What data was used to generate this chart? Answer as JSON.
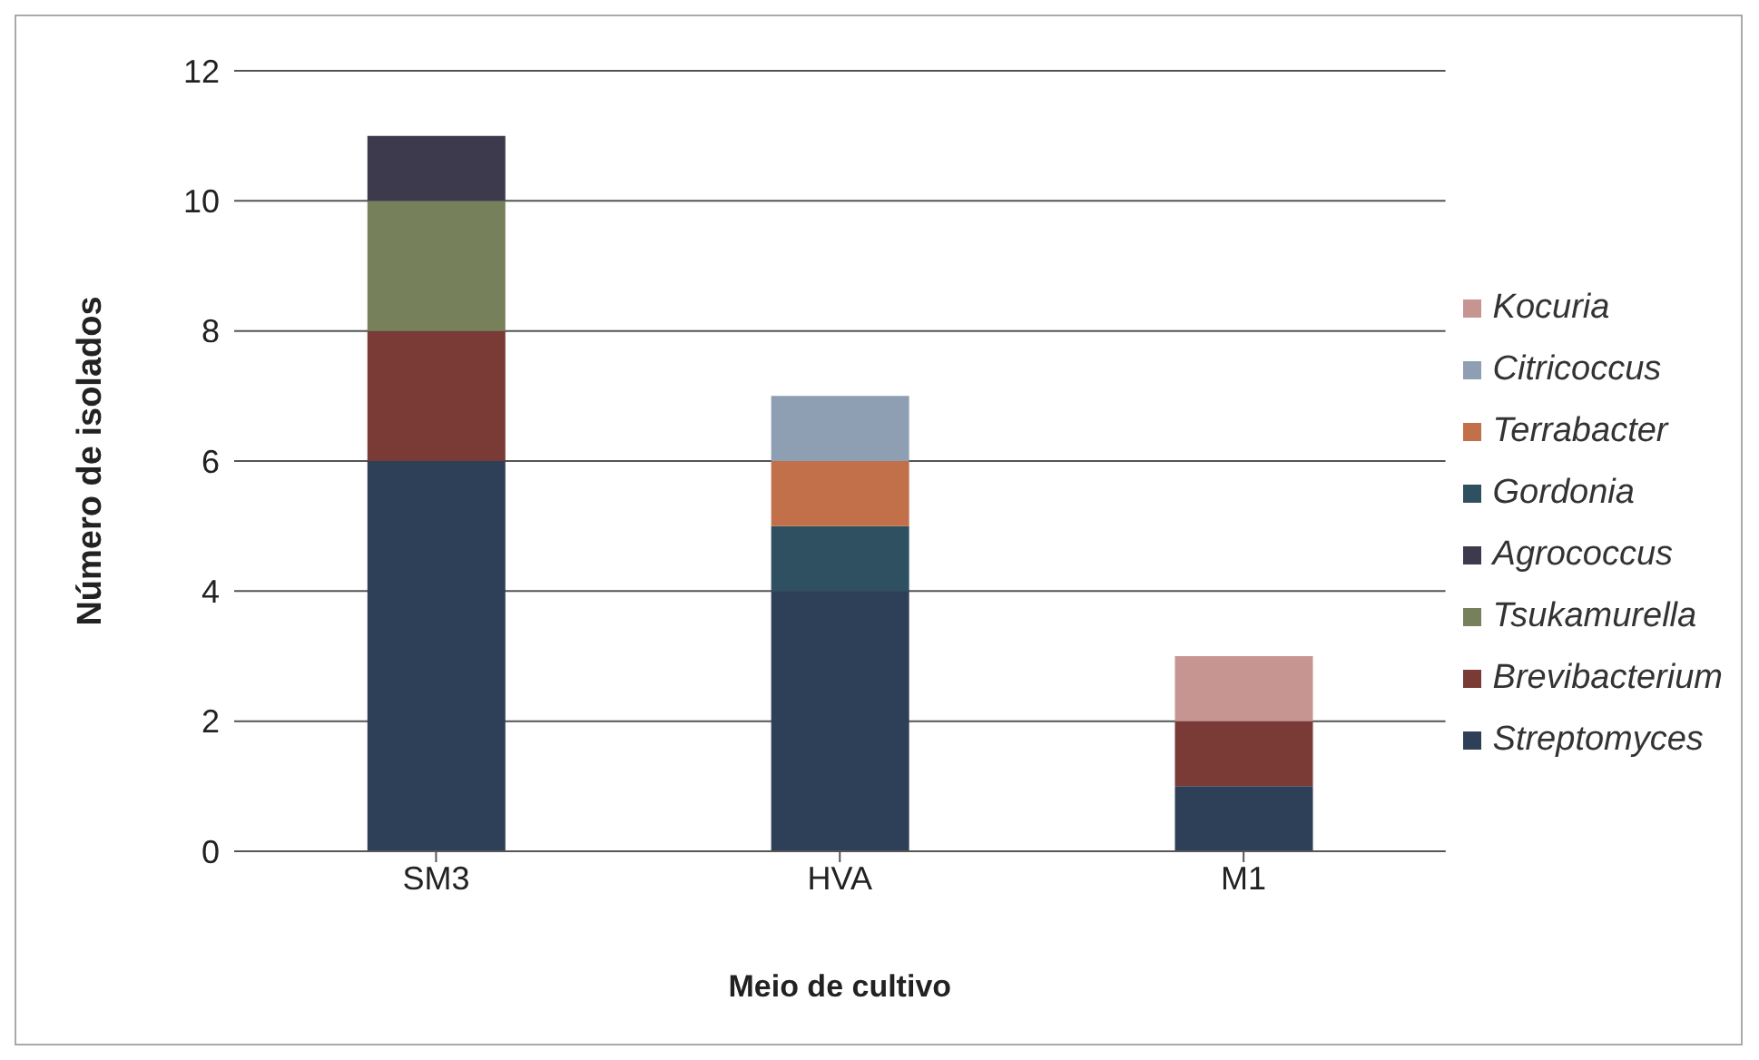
{
  "chart_data": {
    "type": "bar",
    "stacked": true,
    "xlabel": "Meio de cultivo",
    "ylabel": "Número de isolados",
    "categories": [
      "SM3",
      "HVA",
      "M1"
    ],
    "series": [
      {
        "name": "Streptomyces",
        "color": "#2e3f58",
        "values": [
          6,
          4,
          1
        ]
      },
      {
        "name": "Brevibacterium",
        "color": "#7a3a35",
        "values": [
          2,
          null,
          1
        ]
      },
      {
        "name": "Tsukamurella",
        "color": "#76805a",
        "values": [
          2,
          null,
          null
        ]
      },
      {
        "name": "Agrococcus",
        "color": "#3d3a4e",
        "values": [
          1,
          null,
          null
        ]
      },
      {
        "name": "Gordonia",
        "color": "#2f5060",
        "values": [
          null,
          1,
          null
        ]
      },
      {
        "name": "Terrabacter",
        "color": "#c2704a",
        "values": [
          null,
          1,
          null
        ]
      },
      {
        "name": "Citricoccus",
        "color": "#8e9fb3",
        "values": [
          null,
          1,
          null
        ]
      },
      {
        "name": "Kocuria",
        "color": "#c69592",
        "values": [
          null,
          null,
          1
        ]
      }
    ],
    "ylim": [
      0,
      12
    ],
    "yticks": [
      0,
      2,
      4,
      6,
      8,
      10,
      12
    ],
    "grid": "y",
    "legend": "right"
  }
}
